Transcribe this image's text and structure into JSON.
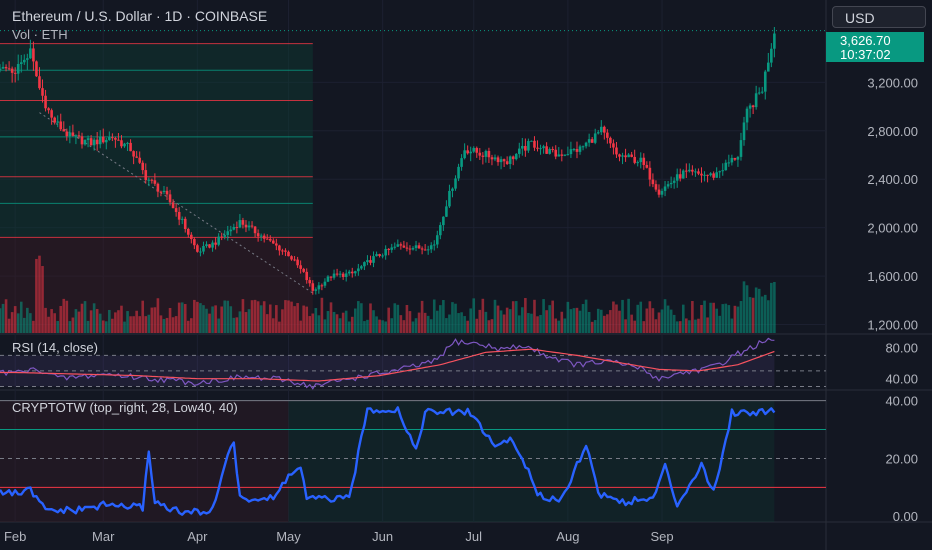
{
  "header": {
    "title": "Ethereum / U.S. Dollar · 1D · COINBASE",
    "subtitle": "Vol · ETH",
    "currency_button": "USD"
  },
  "last_price": {
    "value": "3,626.70",
    "countdown": "10:37:02",
    "color": "#089981"
  },
  "rsi_pane": {
    "title": "RSI (14, close)",
    "ticks": [
      "80.00",
      "40.00"
    ]
  },
  "cryptotw_pane": {
    "title": "CRYPTOTW (top_right, 28, Low40, 40)",
    "ticks": [
      "40.00",
      "20.00",
      "0.00"
    ]
  },
  "colors": {
    "up": "#089981",
    "down": "#f23645",
    "rsi_line": "#7e57c2",
    "rsi_ma": "#f7525f",
    "cryptotw_line": "#2962ff"
  },
  "chart_data": [
    {
      "type": "candlestick",
      "title": "Ethereum / U.S. Dollar · 1D · COINBASE",
      "x_ticks": [
        "Feb",
        "Mar",
        "Apr",
        "May",
        "Jun",
        "Jul",
        "Aug",
        "Sep"
      ],
      "y_ticks": [
        "3,200.00",
        "2,800.00",
        "2,400.00",
        "2,000.00",
        "1,600.00",
        "1,200.00"
      ],
      "y_tick_values": [
        3200,
        2800,
        2400,
        2000,
        1600,
        1200
      ],
      "ylim": [
        1130,
        3880
      ],
      "x_range_days": [
        -5,
        250
      ],
      "anchors": [
        [
          0,
          3300
        ],
        [
          5,
          3450
        ],
        [
          8,
          3150
        ],
        [
          12,
          2900
        ],
        [
          18,
          2750
        ],
        [
          25,
          2700
        ],
        [
          32,
          2750
        ],
        [
          38,
          2650
        ],
        [
          43,
          2420
        ],
        [
          50,
          2250
        ],
        [
          55,
          2050
        ],
        [
          60,
          1800
        ],
        [
          66,
          1880
        ],
        [
          74,
          2050
        ],
        [
          80,
          1950
        ],
        [
          84,
          1880
        ],
        [
          90,
          1780
        ],
        [
          95,
          1620
        ],
        [
          98,
          1480
        ],
        [
          104,
          1600
        ],
        [
          111,
          1620
        ],
        [
          118,
          1750
        ],
        [
          126,
          1850
        ],
        [
          134,
          1830
        ],
        [
          138,
          1860
        ],
        [
          142,
          2200
        ],
        [
          148,
          2650
        ],
        [
          155,
          2600
        ],
        [
          162,
          2550
        ],
        [
          170,
          2700
        ],
        [
          178,
          2600
        ],
        [
          186,
          2650
        ],
        [
          193,
          2800
        ],
        [
          198,
          2600
        ],
        [
          206,
          2550
        ],
        [
          212,
          2300
        ],
        [
          220,
          2450
        ],
        [
          230,
          2430
        ],
        [
          238,
          2600
        ],
        [
          241,
          2950
        ],
        [
          246,
          3150
        ],
        [
          250,
          3626.7
        ]
      ],
      "volume_profile_levels": [
        3520,
        3300,
        3050,
        2750,
        2420,
        2200,
        1920
      ]
    },
    {
      "type": "line",
      "title": "RSI (14, close)",
      "ylim": [
        28,
        95
      ],
      "bands": [
        70,
        50,
        30
      ],
      "anchors": [
        [
          0,
          48
        ],
        [
          8,
          52
        ],
        [
          15,
          40
        ],
        [
          30,
          46
        ],
        [
          45,
          40
        ],
        [
          60,
          35
        ],
        [
          75,
          42
        ],
        [
          90,
          38
        ],
        [
          98,
          30
        ],
        [
          110,
          40
        ],
        [
          125,
          50
        ],
        [
          138,
          62
        ],
        [
          145,
          88
        ],
        [
          152,
          85
        ],
        [
          160,
          78
        ],
        [
          168,
          82
        ],
        [
          175,
          70
        ],
        [
          185,
          58
        ],
        [
          195,
          62
        ],
        [
          205,
          55
        ],
        [
          212,
          40
        ],
        [
          220,
          48
        ],
        [
          230,
          55
        ],
        [
          238,
          72
        ],
        [
          245,
          85
        ],
        [
          250,
          90
        ]
      ],
      "ma_anchors": [
        [
          0,
          48
        ],
        [
          20,
          46
        ],
        [
          40,
          44
        ],
        [
          60,
          40
        ],
        [
          80,
          40
        ],
        [
          100,
          37
        ],
        [
          120,
          44
        ],
        [
          140,
          58
        ],
        [
          155,
          74
        ],
        [
          170,
          78
        ],
        [
          185,
          70
        ],
        [
          200,
          60
        ],
        [
          212,
          52
        ],
        [
          225,
          50
        ],
        [
          238,
          58
        ],
        [
          250,
          75
        ]
      ]
    },
    {
      "type": "line",
      "title": "CRYPTOTW (top_right, 28, Low40, 40)",
      "ylim": [
        -2,
        43
      ],
      "levels": [
        40,
        30,
        20,
        10
      ],
      "anchors": [
        [
          -5,
          8
        ],
        [
          2,
          8
        ],
        [
          5,
          9
        ],
        [
          10,
          2
        ],
        [
          20,
          2
        ],
        [
          30,
          4
        ],
        [
          42,
          3
        ],
        [
          44,
          23
        ],
        [
          46,
          5
        ],
        [
          55,
          1
        ],
        [
          65,
          2
        ],
        [
          70,
          22
        ],
        [
          72,
          25
        ],
        [
          74,
          6
        ],
        [
          85,
          6
        ],
        [
          90,
          14
        ],
        [
          94,
          17
        ],
        [
          96,
          6
        ],
        [
          110,
          6
        ],
        [
          116,
          37
        ],
        [
          126,
          37
        ],
        [
          132,
          23
        ],
        [
          135,
          36
        ],
        [
          150,
          36
        ],
        [
          158,
          24
        ],
        [
          163,
          27
        ],
        [
          168,
          18
        ],
        [
          172,
          7
        ],
        [
          180,
          6
        ],
        [
          188,
          25
        ],
        [
          192,
          8
        ],
        [
          200,
          5
        ],
        [
          210,
          6
        ],
        [
          214,
          17
        ],
        [
          218,
          4
        ],
        [
          226,
          18
        ],
        [
          230,
          8
        ],
        [
          236,
          36
        ],
        [
          244,
          36
        ],
        [
          250,
          37
        ]
      ]
    }
  ]
}
